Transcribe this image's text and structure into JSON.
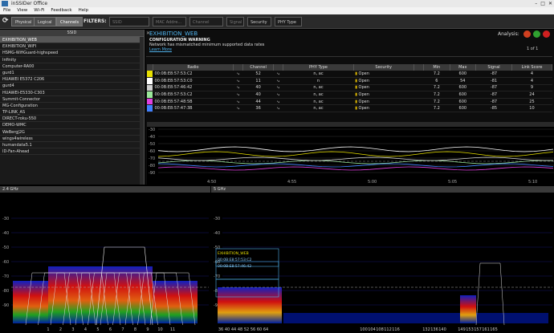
{
  "window": {
    "title": "inSSIDer Office",
    "controls": [
      "–",
      "□",
      "✕"
    ]
  },
  "menu": [
    "File",
    "View",
    "Wi-Fi",
    "Feedback",
    "Help"
  ],
  "toolbar": {
    "btn_physical": "Physical",
    "btn_logical": "Logical",
    "btn_channels": "Channels",
    "filters_label": "FILTERS:",
    "ssid_filter": "SSID",
    "mac_filter": "MAC Addre...",
    "channel_filter": "Channel",
    "signal_filter": "Signal",
    "security_filter": "Security ▾",
    "phy_filter": "PHY Type ▾"
  },
  "ssid_list": {
    "header": "SSID",
    "items": [
      "EXHIBITION_WEB",
      "EXHIBITION_WIFI",
      "HSMG-WifiGuard-highspeed",
      "Infinity",
      "Computer-RA00",
      "gurd1",
      "HUAWEI E5372 C206",
      "gurd4",
      "HUAWEI-E5330-C303",
      "Summit-Connector",
      "MG-Configuration",
      "TP-LINK_AS",
      "DIRECT-roku-550",
      "DEMO-WMC",
      "WeBergJ2G",
      "wings4wireless",
      "humandata5.1",
      "ID-Fan-Ahead"
    ],
    "selected_index": 0
  },
  "detail": {
    "close": "✕",
    "title": "EXHIBITION_WEB",
    "warning_title": "CONFIGURATION WARNING",
    "warning_text": "Network has mismatched minimum supported data rates",
    "learn_more": "Learn More",
    "page": "1 of 1",
    "analysis_label": "Analysis:"
  },
  "network_table": {
    "columns": [
      "",
      "Radio",
      "",
      "Channel",
      "",
      "PHY Type",
      "Security",
      "",
      "Min",
      "Max",
      "Signal",
      "Link Score"
    ],
    "rows": [
      {
        "color": "#e8e000",
        "mac": "00:0B:E8:57:53:C2",
        "channel": "52",
        "phy": "n, ac",
        "security": "Open",
        "min": "7.2",
        "max": "600",
        "signal": "-87",
        "score": "4"
      },
      {
        "color": "#ffffff",
        "mac": "00:0B:E8:57:53:C0",
        "channel": "11",
        "phy": "n",
        "security": "Open",
        "min": "6",
        "max": "54",
        "signal": "-81",
        "score": "4"
      },
      {
        "color": "#d0d0d0",
        "mac": "00:0B:E8:57:46:42",
        "channel": "40",
        "phy": "n, ac",
        "security": "Open",
        "min": "7.2",
        "max": "600",
        "signal": "-87",
        "score": "9"
      },
      {
        "color": "#9be89b",
        "mac": "00:0B:E8:57:53:C2",
        "channel": "40",
        "phy": "n, ac",
        "security": "Open",
        "min": "7.2",
        "max": "600",
        "signal": "-87",
        "score": "24"
      },
      {
        "color": "#e040e0",
        "mac": "00:0B:E8:57:48:5B",
        "channel": "44",
        "phy": "n, ac",
        "security": "Open",
        "min": "7.2",
        "max": "600",
        "signal": "-87",
        "score": "25"
      },
      {
        "color": "#4080ff",
        "mac": "00:0B:E8:57:47:3B",
        "channel": "36",
        "phy": "n, ac",
        "security": "Open",
        "min": "7.2",
        "max": "600",
        "signal": "-85",
        "score": "10"
      }
    ]
  },
  "time_chart": {
    "y_ticks": [
      "-30",
      "-40",
      "-50",
      "-60",
      "-70",
      "-80",
      "-90"
    ],
    "x_ticks": [
      "4:50",
      "4:55",
      "5:00",
      "5:05",
      "5:10"
    ]
  },
  "spectrum_24": {
    "header": "2.4 GHz",
    "y_ticks": [
      "-30",
      "-40",
      "-50",
      "-60",
      "-70",
      "-80",
      "-90"
    ],
    "x_ticks": [
      "1",
      "2",
      "3",
      "4",
      "5",
      "6",
      "7",
      "8",
      "9",
      "10",
      "11"
    ]
  },
  "spectrum_5": {
    "header": "5 GHz",
    "y_ticks": [
      "-30",
      "-40",
      "-50",
      "-60",
      "-70",
      "-80",
      "-90"
    ],
    "x_ticks": [
      "36",
      "40",
      "44",
      "48",
      "52",
      "56",
      "60",
      "64",
      "100",
      "104",
      "108",
      "112",
      "116",
      "132",
      "136",
      "140",
      "149",
      "153",
      "157",
      "161",
      "165"
    ],
    "labels": [
      "EXHIBITION_WEB",
      "00:0B:E8:57:53:C2",
      "00:0B:E8:57:46:42"
    ]
  },
  "colors": {
    "accent": "#4fb0e8",
    "warning": "#e8c000",
    "background": "#000000",
    "panel": "#1a1a1a"
  }
}
